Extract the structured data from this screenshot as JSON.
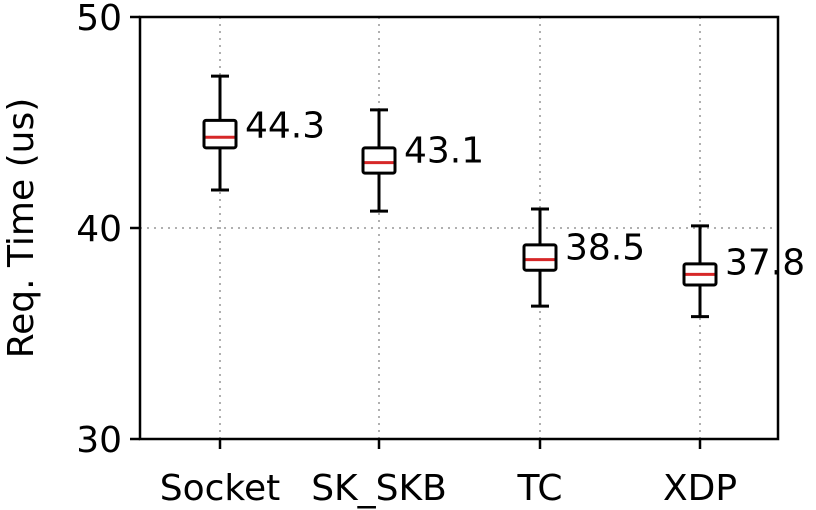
{
  "chart_data": {
    "type": "box",
    "title": "",
    "xlabel": "",
    "ylabel": "Req. Time (us)",
    "ylim": [
      30,
      50
    ],
    "yticks": [
      "30",
      "40",
      "50"
    ],
    "ytick_values": [
      30,
      40,
      50
    ],
    "grid": true,
    "categories": [
      "Socket",
      "SK_SKB",
      "TC",
      "XDP"
    ],
    "boxes": [
      {
        "category": "Socket",
        "median": 44.3,
        "q1": 43.8,
        "q3": 45.1,
        "whisker_low": 41.8,
        "whisker_high": 47.2,
        "label": "44.3"
      },
      {
        "category": "SK_SKB",
        "median": 43.1,
        "q1": 42.6,
        "q3": 43.8,
        "whisker_low": 40.8,
        "whisker_high": 45.6,
        "label": "43.1"
      },
      {
        "category": "TC",
        "median": 38.5,
        "q1": 38.0,
        "q3": 39.2,
        "whisker_low": 36.3,
        "whisker_high": 40.9,
        "label": "38.5"
      },
      {
        "category": "XDP",
        "median": 37.8,
        "q1": 37.3,
        "q3": 38.3,
        "whisker_low": 35.8,
        "whisker_high": 40.1,
        "label": "37.8"
      }
    ],
    "colors": {
      "box": "#000000",
      "median": "#d62728",
      "grid": "#b0b0b0"
    }
  }
}
